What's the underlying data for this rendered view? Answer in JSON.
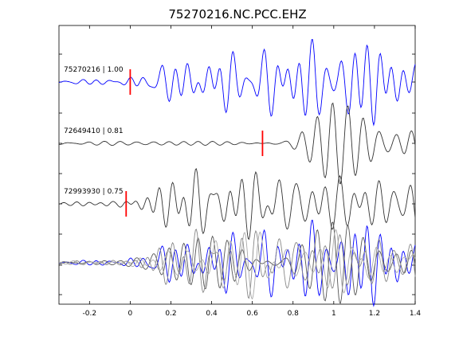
{
  "chart_data": {
    "type": "line",
    "title": "75270216.NC.PCC.EHZ",
    "xlabel": "",
    "ylabel": "",
    "xlim": [
      -0.35,
      1.4
    ],
    "xticks": [
      -0.2,
      0,
      0.2,
      0.4,
      0.6,
      0.8,
      1,
      1.2,
      1.4
    ],
    "xtick_labels": [
      "-0.2",
      "0",
      "0.2",
      "0.4",
      "0.6",
      "0.8",
      "1",
      "1.2",
      "1.4"
    ],
    "grid": false,
    "series": [
      {
        "label": "75270216 | 1.00",
        "color": "#0000ff",
        "pick_time": 0.0,
        "pick_color": "#ff0000",
        "seed": 1,
        "amp": 1.0
      },
      {
        "label": "72649410 | 0.81",
        "color": "#333333",
        "pick_time": 0.65,
        "pick_color": "#ff0000",
        "seed": 2,
        "amp": 1.1
      },
      {
        "label": "72993930 | 0.75",
        "color": "#333333",
        "pick_time": -0.02,
        "pick_color": "#ff0000",
        "seed": 3,
        "amp": 1.0
      }
    ],
    "overlay": {
      "colors": [
        "#0000ff",
        "#555555",
        "#888888",
        "#aaaaaa"
      ]
    }
  }
}
